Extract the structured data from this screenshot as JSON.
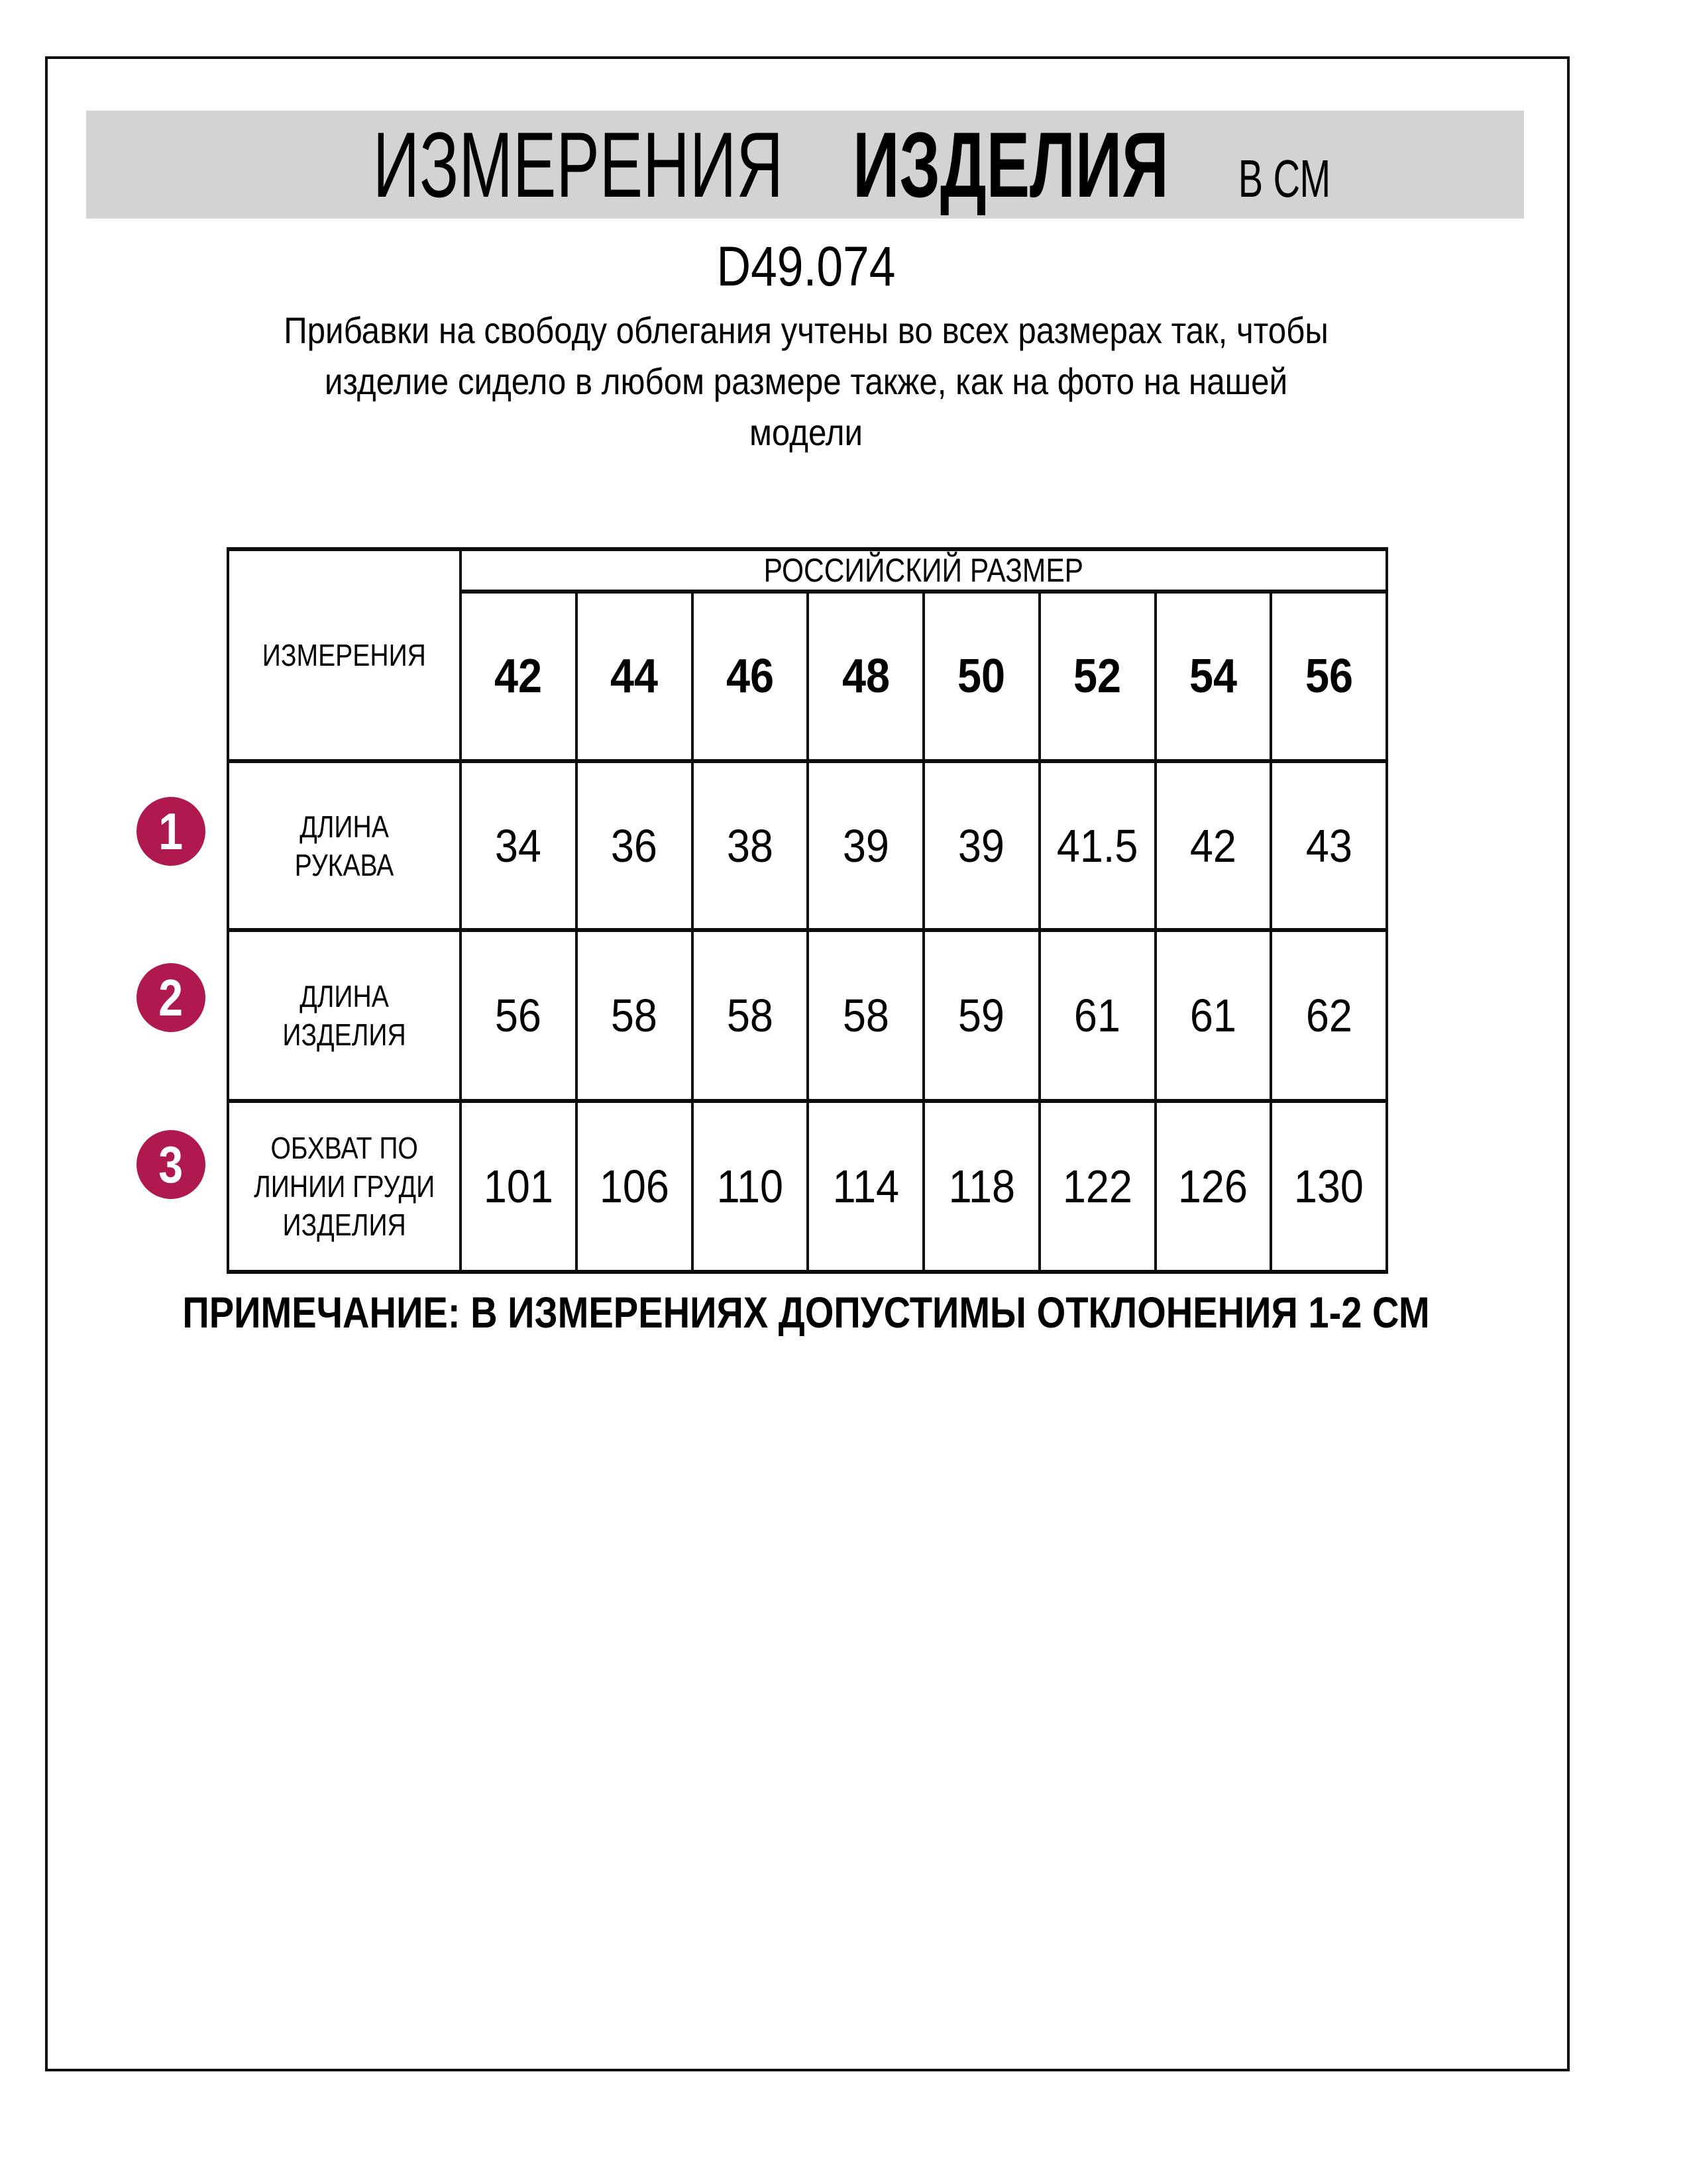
{
  "header": {
    "title_word1": "ИЗМЕРЕНИЯ",
    "title_word2": "ИЗДЕЛИЯ",
    "unit": "В СМ",
    "product_code": "D49.074",
    "description": "Прибавки на свободу облегания учтены во всех размерах так, чтобы\nизделие сидело в любом размере также, как на фото на нашей\nмодели"
  },
  "table": {
    "corner_label": "ИЗМЕРЕНИЯ",
    "size_group_label": "РОССИЙСКИЙ РАЗМЕР",
    "sizes": [
      "42",
      "44",
      "46",
      "48",
      "50",
      "52",
      "54",
      "56"
    ],
    "rows": [
      {
        "num": "1",
        "label": "ДЛИНА РУКАВА",
        "values": [
          "34",
          "36",
          "38",
          "39",
          "39",
          "41.5",
          "42",
          "43"
        ]
      },
      {
        "num": "2",
        "label": "ДЛИНА\nИЗДЕЛИЯ",
        "values": [
          "56",
          "58",
          "58",
          "58",
          "59",
          "61",
          "61",
          "62"
        ]
      },
      {
        "num": "3",
        "label": "ОБХВАТ ПО\nЛИНИИ ГРУДИ\nИЗДЕЛИЯ",
        "values": [
          "101",
          "106",
          "110",
          "114",
          "118",
          "122",
          "126",
          "130"
        ]
      }
    ]
  },
  "footer": {
    "note": "ПРИМЕЧАНИЕ: В ИЗМЕРЕНИЯХ ДОПУСТИМЫ ОТКЛОНЕНИЯ 1-2 СМ"
  },
  "colors": {
    "accent": "#b01850",
    "band": "#d3d3d3",
    "line": "#0d0d0d"
  }
}
